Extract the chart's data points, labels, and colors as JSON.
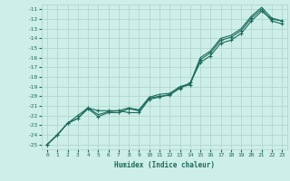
{
  "xlabel": "Humidex (Indice chaleur)",
  "bg_color": "#ceeee8",
  "grid_color": "#aad4cc",
  "line_color": "#1a6b5a",
  "xlim": [
    -0.5,
    23.5
  ],
  "ylim": [
    -25.5,
    -10.5
  ],
  "xticks": [
    0,
    1,
    2,
    3,
    4,
    5,
    6,
    7,
    8,
    9,
    10,
    11,
    12,
    13,
    14,
    15,
    16,
    17,
    18,
    19,
    20,
    21,
    22,
    23
  ],
  "yticks": [
    -11,
    -12,
    -13,
    -14,
    -15,
    -16,
    -17,
    -18,
    -19,
    -20,
    -21,
    -22,
    -23,
    -24,
    -25
  ],
  "line1_x": [
    0,
    1,
    2,
    3,
    4,
    5,
    6,
    7,
    8,
    9,
    10,
    11,
    12,
    13,
    14,
    15,
    16,
    17,
    18,
    19,
    20,
    21,
    22,
    23
  ],
  "line1_y": [
    -25.0,
    -24.0,
    -22.8,
    -22.0,
    -21.2,
    -21.5,
    -21.5,
    -21.5,
    -21.7,
    -21.7,
    -20.3,
    -20.1,
    -19.8,
    -19.2,
    -18.6,
    -16.5,
    -15.8,
    -14.5,
    -14.2,
    -13.5,
    -12.2,
    -11.2,
    -12.0,
    -12.2
  ],
  "line2_x": [
    0,
    1,
    2,
    3,
    4,
    5,
    6,
    7,
    8,
    9,
    10,
    11,
    12,
    13,
    14,
    15,
    16,
    17,
    18,
    19,
    20,
    21,
    22,
    23
  ],
  "line2_y": [
    -25.0,
    -24.0,
    -22.8,
    -22.3,
    -21.3,
    -22.1,
    -21.7,
    -21.7,
    -21.3,
    -21.5,
    -20.2,
    -20.0,
    -19.9,
    -19.1,
    -18.8,
    -16.2,
    -15.5,
    -14.2,
    -13.9,
    -13.2,
    -11.9,
    -11.0,
    -12.2,
    -12.5
  ],
  "line3_x": [
    0,
    1,
    2,
    3,
    4,
    5,
    6,
    7,
    8,
    9,
    10,
    11,
    12,
    13,
    14,
    15,
    16,
    17,
    18,
    19,
    20,
    21,
    22,
    23
  ],
  "line3_y": [
    -25.0,
    -24.0,
    -22.8,
    -22.3,
    -21.2,
    -21.9,
    -21.6,
    -21.5,
    -21.2,
    -21.4,
    -20.1,
    -19.8,
    -19.7,
    -19.0,
    -18.7,
    -16.0,
    -15.3,
    -14.0,
    -13.7,
    -13.0,
    -11.7,
    -10.8,
    -11.9,
    -12.2
  ]
}
